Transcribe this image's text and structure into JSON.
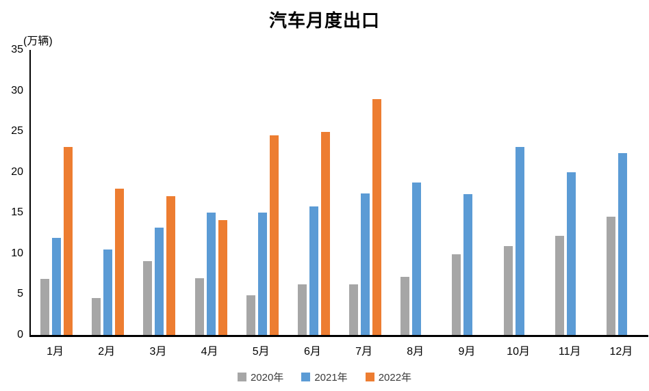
{
  "header": {
    "title": "汽车月度出口"
  },
  "y_axis": {
    "unit_label": "(万辆)"
  },
  "colors": {
    "series_2020": "#A6A6A6",
    "series_2021": "#5B9BD5",
    "series_2022": "#ED7D31",
    "axis": "#000000",
    "text": "#000000",
    "legend_text": "#3a3a3a"
  },
  "chart_data": {
    "type": "bar",
    "title": "汽车月度出口",
    "ylabel": "(万辆)",
    "xlabel": "",
    "categories": [
      "1月",
      "2月",
      "3月",
      "4月",
      "5月",
      "6月",
      "7月",
      "8月",
      "9月",
      "10月",
      "11月",
      "12月"
    ],
    "series": [
      {
        "name": "2020年",
        "color": "#A6A6A6",
        "values": [
          6.9,
          4.5,
          9.1,
          7.0,
          4.9,
          6.2,
          6.2,
          7.1,
          9.9,
          10.9,
          12.2,
          14.5
        ]
      },
      {
        "name": "2021年",
        "color": "#5B9BD5",
        "values": [
          11.9,
          10.5,
          13.2,
          15.0,
          15.0,
          15.8,
          17.4,
          18.7,
          17.3,
          23.1,
          20.0,
          22.3
        ]
      },
      {
        "name": "2022年",
        "color": "#ED7D31",
        "values": [
          23.1,
          18.0,
          17.0,
          14.1,
          24.5,
          24.9,
          29.0,
          null,
          null,
          null,
          null,
          null
        ]
      }
    ],
    "ylim": [
      0,
      35
    ],
    "y_tick_step": 5,
    "y_ticks": [
      0,
      5,
      10,
      15,
      20,
      25,
      30,
      35
    ],
    "grid": false,
    "legend_position": "bottom"
  }
}
